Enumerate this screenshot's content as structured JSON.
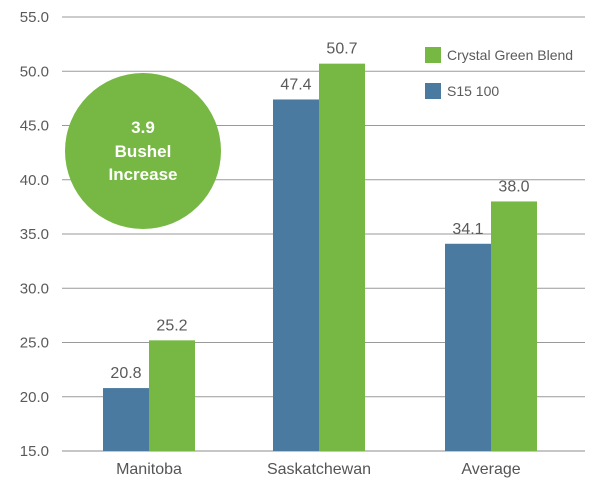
{
  "chart_data": {
    "type": "bar",
    "categories": [
      "Manitoba",
      "Saskatchewan",
      "Average"
    ],
    "series": [
      {
        "name": "S15 100",
        "values": [
          20.8,
          47.4,
          34.1
        ],
        "color": "#4a7aa0"
      },
      {
        "name": "Crystal Green Blend",
        "values": [
          25.2,
          50.7,
          38.0
        ],
        "color": "#76b843"
      }
    ],
    "data_labels": [
      [
        "20.8",
        "47.4",
        "34.1"
      ],
      [
        "25.2",
        "50.7",
        "38.0"
      ]
    ],
    "ylim": [
      15.0,
      55.0
    ],
    "yticks": [
      "15.0",
      "20.0",
      "25.0",
      "30.0",
      "35.0",
      "40.0",
      "45.0",
      "50.0",
      "55.0"
    ],
    "grid": true,
    "legend_position": "top-right",
    "legend": [
      {
        "label": "Crystal Green Blend",
        "color": "#76b843"
      },
      {
        "label": "S15 100",
        "color": "#4a7aa0"
      }
    ],
    "xlabel": "",
    "ylabel": "",
    "title": ""
  },
  "callout": {
    "lines": [
      "3.9",
      "Bushel",
      "Increase"
    ],
    "color": "#76b843"
  }
}
